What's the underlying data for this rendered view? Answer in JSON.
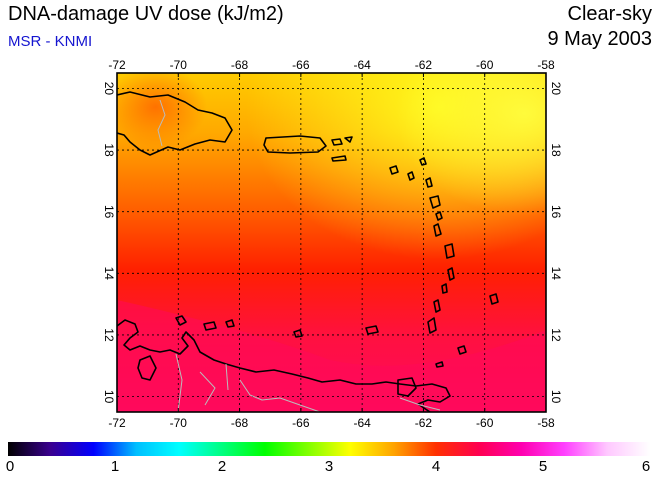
{
  "header": {
    "title": "DNA-damage UV dose (kJ/m2)",
    "subtitle": "MSR - KNMI",
    "product": "Clear-sky",
    "date": "9 May 2003"
  },
  "map": {
    "lon_range": [
      -72,
      -58
    ],
    "lat_range": [
      9.5,
      20.5
    ],
    "lon_ticks": [
      "-72",
      "-70",
      "-68",
      "-66",
      "-64",
      "-62",
      "-60",
      "-58"
    ],
    "lat_ticks": [
      "10",
      "12",
      "14",
      "16",
      "18",
      "20"
    ],
    "graticule": "dotted",
    "coastline_color": "#000000",
    "border_color": "#bbbbbb"
  },
  "colorbar": {
    "min": 0,
    "max": 6,
    "labels": [
      "0",
      "1",
      "2",
      "3",
      "4",
      "5",
      "6"
    ],
    "stops": [
      "#000000",
      "#3a0090",
      "#0000ff",
      "#00bfff",
      "#00ffff",
      "#00ff80",
      "#00ff00",
      "#80ff00",
      "#ffff00",
      "#ffa500",
      "#ff3000",
      "#ff0050",
      "#ff00b0",
      "#ff40ff",
      "#ffc8ff",
      "#ffffff"
    ]
  },
  "field_colors": {
    "north_high": "#ffe600",
    "north_mid": "#ffb000",
    "central": "#ff2a00",
    "south": "#ff1060"
  }
}
